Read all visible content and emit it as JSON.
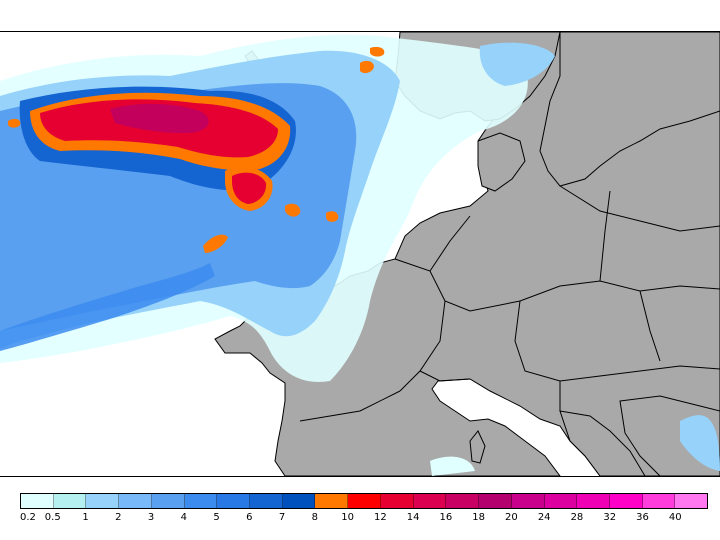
{
  "map": {
    "land_color": "#a9a9a9",
    "sea_color": "#ffffff",
    "border_color": "#000000"
  },
  "legend": {
    "colors": [
      "#e0ffff",
      "#b4f0f0",
      "#96d2fa",
      "#78b9fa",
      "#5aa0f0",
      "#3c8cf0",
      "#2878e6",
      "#1464d2",
      "#0050be",
      "#ff7800",
      "#ff0000",
      "#e60032",
      "#dc0050",
      "#c80064",
      "#b4006e",
      "#c8008c",
      "#dc00a0",
      "#f000b4",
      "#ff00c8",
      "#ff3cdc",
      "#ff78f0"
    ],
    "labels": [
      "0.2",
      "0.5",
      "1",
      "2",
      "3",
      "4",
      "5",
      "6",
      "7",
      "8",
      "10",
      "12",
      "14",
      "16",
      "18",
      "20",
      "24",
      "28",
      "32",
      "36",
      "40"
    ]
  }
}
